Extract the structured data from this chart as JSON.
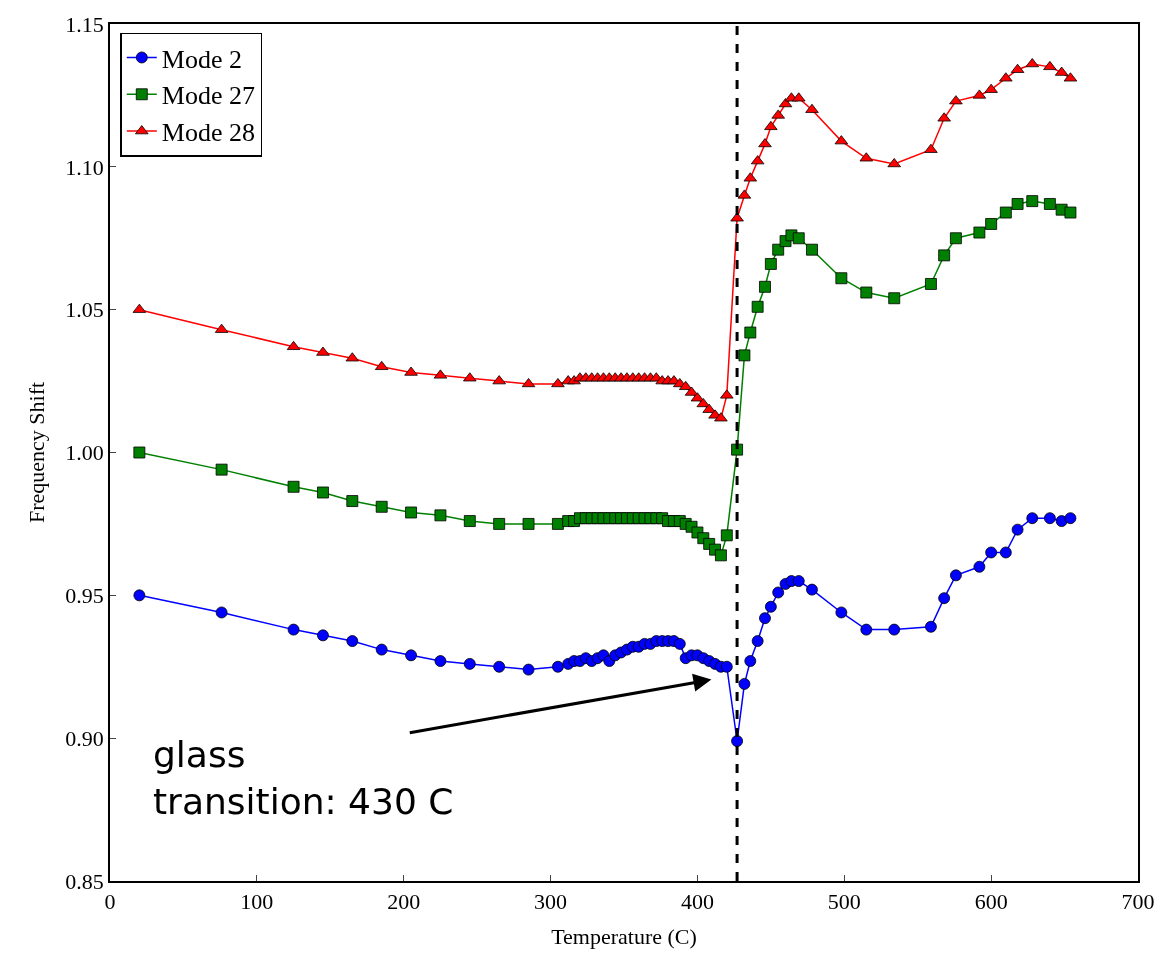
{
  "chart_data": {
    "type": "line",
    "xlabel": "Temperature (C)",
    "ylabel": "Frequency Shift",
    "x": [
      20,
      76,
      125,
      145,
      165,
      185,
      205,
      225,
      245,
      265,
      285,
      305,
      312,
      316,
      320,
      324,
      328,
      332,
      336,
      340,
      344,
      348,
      352,
      356,
      360,
      364,
      368,
      372,
      376,
      380,
      384,
      388,
      392,
      396,
      400,
      404,
      408,
      412,
      416,
      420,
      427,
      432,
      436,
      441,
      446,
      450,
      455,
      460,
      464,
      469,
      478,
      498,
      515,
      534,
      559,
      568,
      576,
      592,
      600,
      610,
      618,
      628,
      640,
      648,
      654
    ],
    "series": [
      {
        "name": "Mode 2",
        "color": "#0000ff",
        "marker": "circle",
        "values": [
          0.95,
          0.944,
          0.938,
          0.936,
          0.934,
          0.931,
          0.929,
          0.927,
          0.926,
          0.925,
          0.924,
          0.925,
          0.926,
          0.927,
          0.927,
          0.928,
          0.927,
          0.928,
          0.929,
          0.927,
          0.929,
          0.93,
          0.931,
          0.932,
          0.932,
          0.933,
          0.933,
          0.934,
          0.934,
          0.934,
          0.934,
          0.933,
          0.928,
          0.929,
          0.929,
          0.928,
          0.927,
          0.926,
          0.925,
          0.925,
          0.899,
          0.919,
          0.927,
          0.934,
          0.942,
          0.946,
          0.951,
          0.954,
          0.955,
          0.955,
          0.952,
          0.944,
          0.938,
          0.938,
          0.939,
          0.949,
          0.957,
          0.96,
          0.965,
          0.965,
          0.973,
          0.977,
          0.977,
          0.976,
          0.977
        ]
      },
      {
        "name": "Mode 27",
        "color": "#008000",
        "marker": "square",
        "values": [
          1.0,
          0.994,
          0.988,
          0.986,
          0.983,
          0.981,
          0.979,
          0.978,
          0.976,
          0.975,
          0.975,
          0.975,
          0.976,
          0.976,
          0.977,
          0.977,
          0.977,
          0.977,
          0.977,
          0.977,
          0.977,
          0.977,
          0.977,
          0.977,
          0.977,
          0.977,
          0.977,
          0.977,
          0.977,
          0.976,
          0.976,
          0.976,
          0.975,
          0.974,
          0.972,
          0.97,
          0.968,
          0.966,
          0.964,
          0.971,
          1.001,
          1.034,
          1.042,
          1.051,
          1.058,
          1.066,
          1.071,
          1.074,
          1.076,
          1.075,
          1.071,
          1.061,
          1.056,
          1.054,
          1.059,
          1.069,
          1.075,
          1.077,
          1.08,
          1.084,
          1.087,
          1.088,
          1.087,
          1.085,
          1.084
        ]
      },
      {
        "name": "Mode 28",
        "color": "#ff0000",
        "marker": "triangle",
        "values": [
          1.05,
          1.043,
          1.037,
          1.035,
          1.033,
          1.03,
          1.028,
          1.027,
          1.026,
          1.025,
          1.024,
          1.024,
          1.025,
          1.025,
          1.026,
          1.026,
          1.026,
          1.026,
          1.026,
          1.026,
          1.026,
          1.026,
          1.026,
          1.026,
          1.026,
          1.026,
          1.026,
          1.026,
          1.025,
          1.025,
          1.025,
          1.024,
          1.023,
          1.021,
          1.019,
          1.017,
          1.015,
          1.013,
          1.012,
          1.02,
          1.082,
          1.09,
          1.096,
          1.102,
          1.108,
          1.114,
          1.118,
          1.122,
          1.124,
          1.124,
          1.12,
          1.109,
          1.103,
          1.101,
          1.106,
          1.117,
          1.123,
          1.125,
          1.127,
          1.131,
          1.134,
          1.136,
          1.135,
          1.133,
          1.131
        ]
      }
    ],
    "xlim": [
      0,
      700
    ],
    "xticks": [
      0,
      100,
      200,
      300,
      400,
      500,
      600,
      700
    ],
    "ylim": [
      0.85,
      1.15
    ],
    "yticks": [
      {
        "value": 0.85,
        "label": "0.85"
      },
      {
        "value": 0.9,
        "label": "0.90"
      },
      {
        "value": 0.95,
        "label": "0.95"
      },
      {
        "value": 1.0,
        "label": "1.00"
      },
      {
        "value": 1.05,
        "label": "1.05"
      },
      {
        "value": 1.1,
        "label": "1.10"
      },
      {
        "value": 1.15,
        "label": "1.15"
      }
    ],
    "ref_lines": [
      {
        "axis": "x",
        "value": 427,
        "color": "#000000",
        "line_style": "dashed"
      }
    ],
    "annotations": [
      "glass\ntransition: 430 C"
    ],
    "legend": "top left"
  }
}
